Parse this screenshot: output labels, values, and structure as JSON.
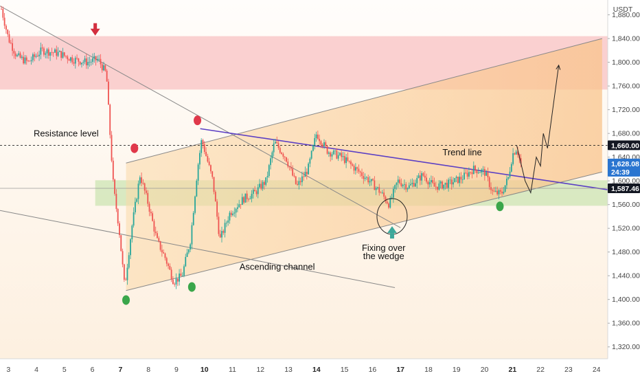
{
  "chart_data": {
    "type": "candlestick",
    "quote_currency": "USDT",
    "y_ticks": [
      1880,
      1840,
      1800,
      1760,
      1720,
      1680,
      1640,
      1600,
      1560,
      1520,
      1480,
      1440,
      1400,
      1360,
      1320
    ],
    "y_tick_labels": [
      "1,880.00",
      "1,840.00",
      "1,800.00",
      "1,760.00",
      "1,720.00",
      "1,680.00",
      "1,640.00",
      "1,600.00",
      "1,560.00",
      "1,520.00",
      "1,480.00",
      "1,440.00",
      "1,400.00",
      "1,360.00",
      "1,320.00"
    ],
    "ylim": [
      1300,
      1905
    ],
    "x_ticks": [
      3,
      4,
      5,
      6,
      7,
      8,
      9,
      10,
      11,
      12,
      13,
      14,
      15,
      16,
      17,
      18,
      19,
      20,
      21,
      22,
      23,
      24
    ],
    "x_tick_labels": [
      "3",
      "4",
      "5",
      "6",
      "7",
      "8",
      "9",
      "10",
      "11",
      "12",
      "13",
      "14",
      "15",
      "16",
      "17",
      "18",
      "19",
      "20",
      "21",
      "22",
      "23",
      "24"
    ],
    "x_bold_ticks": [
      "7",
      "10",
      "14",
      "17",
      "21"
    ],
    "xlim": [
      2.7,
      24.4
    ],
    "close_series_anchors": [
      {
        "day": 2.75,
        "price": 1890
      },
      {
        "day": 3.0,
        "price": 1840
      },
      {
        "day": 3.3,
        "price": 1810
      },
      {
        "day": 3.7,
        "price": 1800
      },
      {
        "day": 4.2,
        "price": 1820
      },
      {
        "day": 4.8,
        "price": 1815
      },
      {
        "day": 5.3,
        "price": 1805
      },
      {
        "day": 5.8,
        "price": 1800
      },
      {
        "day": 6.2,
        "price": 1805
      },
      {
        "day": 6.5,
        "price": 1780
      },
      {
        "day": 6.6,
        "price": 1700
      },
      {
        "day": 6.75,
        "price": 1590
      },
      {
        "day": 6.95,
        "price": 1520
      },
      {
        "day": 7.15,
        "price": 1420
      },
      {
        "day": 7.4,
        "price": 1520
      },
      {
        "day": 7.7,
        "price": 1610
      },
      {
        "day": 8.0,
        "price": 1560
      },
      {
        "day": 8.3,
        "price": 1500
      },
      {
        "day": 8.6,
        "price": 1470
      },
      {
        "day": 8.9,
        "price": 1430
      },
      {
        "day": 9.2,
        "price": 1440
      },
      {
        "day": 9.5,
        "price": 1500
      },
      {
        "day": 9.75,
        "price": 1620
      },
      {
        "day": 9.9,
        "price": 1670
      },
      {
        "day": 10.3,
        "price": 1600
      },
      {
        "day": 10.55,
        "price": 1500
      },
      {
        "day": 10.9,
        "price": 1545
      },
      {
        "day": 11.4,
        "price": 1570
      },
      {
        "day": 11.8,
        "price": 1580
      },
      {
        "day": 12.2,
        "price": 1600
      },
      {
        "day": 12.5,
        "price": 1665
      },
      {
        "day": 12.9,
        "price": 1640
      },
      {
        "day": 13.3,
        "price": 1590
      },
      {
        "day": 13.7,
        "price": 1620
      },
      {
        "day": 14.0,
        "price": 1680
      },
      {
        "day": 14.4,
        "price": 1650
      },
      {
        "day": 14.9,
        "price": 1640
      },
      {
        "day": 15.4,
        "price": 1620
      },
      {
        "day": 15.9,
        "price": 1600
      },
      {
        "day": 16.3,
        "price": 1580
      },
      {
        "day": 16.6,
        "price": 1560
      },
      {
        "day": 16.9,
        "price": 1600
      },
      {
        "day": 17.3,
        "price": 1590
      },
      {
        "day": 17.8,
        "price": 1610
      },
      {
        "day": 18.2,
        "price": 1590
      },
      {
        "day": 18.7,
        "price": 1595
      },
      {
        "day": 19.2,
        "price": 1605
      },
      {
        "day": 19.6,
        "price": 1620
      },
      {
        "day": 20.0,
        "price": 1615
      },
      {
        "day": 20.3,
        "price": 1580
      },
      {
        "day": 20.6,
        "price": 1578
      },
      {
        "day": 20.85,
        "price": 1605
      },
      {
        "day": 21.0,
        "price": 1645
      },
      {
        "day": 21.15,
        "price": 1655
      },
      {
        "day": 21.3,
        "price": 1628
      }
    ],
    "zones": [
      {
        "name": "resistance-zone",
        "from_day": 2.7,
        "to_day": 24.4,
        "from_price": 1754,
        "to_price": 1844,
        "color": "#f9c6c6"
      },
      {
        "name": "support-zone",
        "from_day": 6.1,
        "to_day": 24.4,
        "from_price": 1558,
        "to_price": 1601,
        "color": "#cfe6b6"
      }
    ],
    "lines": [
      {
        "name": "resistance-trend-line",
        "from": {
          "day": 2.7,
          "price": 1895
        },
        "to": {
          "day": 17.0,
          "price": 1521
        },
        "color": "#888888"
      },
      {
        "name": "lower-wedge-line",
        "from": {
          "day": 2.7,
          "price": 1550
        },
        "to": {
          "day": 16.8,
          "price": 1420
        },
        "color": "#888888"
      },
      {
        "name": "channel-upper",
        "from": {
          "day": 7.2,
          "price": 1630
        },
        "to": {
          "day": 24.2,
          "price": 1840
        },
        "color": "#888888"
      },
      {
        "name": "channel-lower",
        "from": {
          "day": 7.2,
          "price": 1415
        },
        "to": {
          "day": 24.2,
          "price": 1615
        },
        "color": "#888888"
      },
      {
        "name": "purple-trend-line",
        "from": {
          "day": 9.85,
          "price": 1688
        },
        "to": {
          "day": 24.4,
          "price": 1585
        },
        "color": "#5b3fc4"
      }
    ],
    "horizontal_levels": [
      {
        "price": 1660,
        "label": "1,660.00",
        "style": "dashed",
        "tag_color": "#131722"
      },
      {
        "price": 1628.08,
        "label": "1,628.08",
        "sublabel": "24:39",
        "style": "none",
        "tag_color": "#2a75d0"
      },
      {
        "price": 1587.46,
        "label": "1,587.46",
        "style": "solid",
        "tag_color": "#131722"
      }
    ],
    "projection_path": [
      {
        "day": 21.15,
        "price": 1660
      },
      {
        "day": 21.45,
        "price": 1600
      },
      {
        "day": 21.65,
        "price": 1580
      },
      {
        "day": 21.85,
        "price": 1640
      },
      {
        "day": 22.0,
        "price": 1625
      },
      {
        "day": 22.1,
        "price": 1680
      },
      {
        "day": 22.25,
        "price": 1655
      },
      {
        "day": 22.65,
        "price": 1795
      }
    ],
    "markers": [
      {
        "type": "arrow-down",
        "day": 6.1,
        "price": 1852,
        "color": "#d32f3f"
      },
      {
        "type": "dot",
        "day": 7.5,
        "price": 1655,
        "color": "#e0384a"
      },
      {
        "type": "dot",
        "day": 9.75,
        "price": 1702,
        "color": "#e0384a"
      },
      {
        "type": "dot",
        "day": 7.2,
        "price": 1399,
        "color": "#3aa64a"
      },
      {
        "type": "dot",
        "day": 9.55,
        "price": 1421,
        "color": "#3aa64a"
      },
      {
        "type": "dot",
        "day": 20.55,
        "price": 1557,
        "color": "#3aa64a"
      },
      {
        "type": "arrow-up",
        "day": 16.7,
        "price": 1512,
        "color": "#3ca89a"
      }
    ],
    "annotations": [
      {
        "name": "resistance-level-label",
        "text": "Resistance level",
        "day": 3.9,
        "price": 1675
      },
      {
        "name": "trend-line-label",
        "text": "Trend line",
        "day": 18.5,
        "price": 1643
      },
      {
        "name": "ascending-channel-label",
        "text": "Ascending channel",
        "day": 11.25,
        "price": 1450
      },
      {
        "name": "fixing-label-line1",
        "text": "Fixing over",
        "day": 16.4,
        "price": 1482
      },
      {
        "name": "fixing-label-line2",
        "text": "the wedge",
        "day": 16.4,
        "price": 1468
      }
    ]
  }
}
